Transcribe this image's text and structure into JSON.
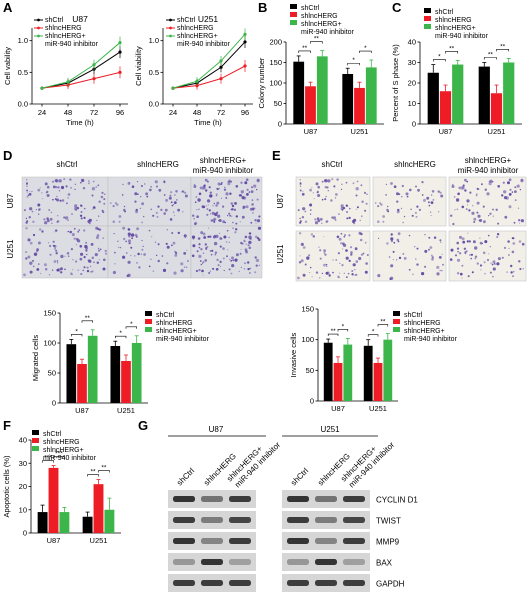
{
  "colors": {
    "shctrl": "#000000",
    "shlnc": "#ee1c25",
    "inhib": "#3cb54a",
    "micro_bg": "#dcdde3",
    "micro_bg_e": "#f2efe9",
    "cell": "#5a3f9e",
    "band": "#222222"
  },
  "panel_letters": {
    "A": "A",
    "B": "B",
    "C": "C",
    "D": "D",
    "E": "E",
    "F": "F",
    "G": "G"
  },
  "groups": [
    "shCtrl",
    "shlncHERG",
    "shlncHERG+ miR-940 inhibitor"
  ],
  "cell_lines": [
    "U87",
    "U251"
  ],
  "panel_a": {
    "legend": [
      "shCtrl",
      "shlncHERG",
      "shlncHERG+",
      "miR-940 inhibitor"
    ],
    "chart_data": [
      {
        "type": "line",
        "title": "U87",
        "xlabel": "Time (h)",
        "ylabel": "Cell vability",
        "x": [
          24,
          48,
          72,
          96
        ],
        "ylim": [
          0,
          1.2
        ],
        "yticks": [
          "0.0",
          "0.5",
          "1.0"
        ],
        "series": [
          {
            "name": "shCtrl",
            "values": [
              0.25,
              0.33,
              0.55,
              0.82
            ]
          },
          {
            "name": "shlncHERG",
            "values": [
              0.25,
              0.3,
              0.4,
              0.5
            ]
          },
          {
            "name": "shlncHERG+ miR-940 inhibitor",
            "values": [
              0.25,
              0.35,
              0.62,
              0.97
            ]
          }
        ]
      },
      {
        "type": "line",
        "title": "U251",
        "xlabel": "Time (h)",
        "ylabel": "Cell viability",
        "x": [
          24,
          48,
          72,
          96
        ],
        "ylim": [
          0,
          1.2
        ],
        "yticks": [
          "0.0",
          "0.5",
          "1.0"
        ],
        "series": [
          {
            "name": "shCtrl",
            "values": [
              0.25,
              0.33,
              0.58,
              0.98
            ]
          },
          {
            "name": "shlncHERG",
            "values": [
              0.25,
              0.29,
              0.4,
              0.6
            ]
          },
          {
            "name": "shlncHERG+ miR-940 inhibitor",
            "values": [
              0.25,
              0.36,
              0.68,
              1.1
            ]
          }
        ]
      }
    ]
  },
  "panel_b": {
    "legend": [
      "shCtrl",
      "shlncHERG",
      "shlncHERG+",
      "miR-940 inhibitor"
    ],
    "chart_data": {
      "type": "bar",
      "categories": [
        "U87",
        "U251"
      ],
      "ylabel": "Colony number",
      "ylim": [
        0,
        200
      ],
      "yticks": [
        "0",
        "50",
        "100",
        "150",
        "200"
      ],
      "series": [
        {
          "name": "shCtrl",
          "values": [
            152,
            122
          ],
          "errors": [
            14,
            14
          ]
        },
        {
          "name": "shlncHERG",
          "values": [
            92,
            88
          ],
          "errors": [
            10,
            14
          ]
        },
        {
          "name": "shlncHERG+ miR-940 inhibitor",
          "values": [
            165,
            138
          ],
          "errors": [
            14,
            18
          ]
        }
      ],
      "significance": [
        "**",
        "**",
        "*",
        "*"
      ]
    }
  },
  "panel_c": {
    "legend": [
      "shCtrl",
      "shlncHERG",
      "shlncHERG+",
      "miR-940 inhibitor"
    ],
    "chart_data": {
      "type": "bar",
      "categories": [
        "U87",
        "U251"
      ],
      "ylabel": "Percent of S phase (%)",
      "ylim": [
        0,
        40
      ],
      "yticks": [
        "0",
        "10",
        "20",
        "30",
        "40"
      ],
      "series": [
        {
          "name": "shCtrl",
          "values": [
            25,
            28
          ],
          "errors": [
            4,
            2
          ]
        },
        {
          "name": "shlncHERG",
          "values": [
            16,
            15
          ],
          "errors": [
            3,
            4
          ]
        },
        {
          "name": "shlncHERG+ miR-940 inhibitor",
          "values": [
            29,
            30
          ],
          "errors": [
            2,
            2
          ]
        }
      ],
      "significance": [
        "*",
        "**",
        "**",
        "**"
      ]
    }
  },
  "panel_d": {
    "headers": [
      "shCtrl",
      "shlncHERG",
      "shlncHERG+",
      "miR-940 inhibitor"
    ],
    "rows": [
      "U87",
      "U251"
    ],
    "legend": [
      "shCtrl",
      "shlncHERG",
      "shlncHERG+",
      "miR-940 inhibitor"
    ],
    "chart_data": {
      "type": "bar",
      "categories": [
        "U87",
        "U251"
      ],
      "ylabel": "Migrated cells",
      "ylim": [
        0,
        150
      ],
      "yticks": [
        "0",
        "50",
        "100",
        "150"
      ],
      "series": [
        {
          "name": "shCtrl",
          "values": [
            98,
            95
          ],
          "errors": [
            8,
            8
          ]
        },
        {
          "name": "shlncHERG",
          "values": [
            65,
            70
          ],
          "errors": [
            8,
            10
          ]
        },
        {
          "name": "shlncHERG+ miR-940 inhibitor",
          "values": [
            112,
            100
          ],
          "errors": [
            10,
            12
          ]
        }
      ],
      "significance": [
        "*",
        "**",
        "*",
        "*"
      ]
    }
  },
  "panel_e": {
    "headers": [
      "shCtrl",
      "shlncHERG",
      "shlncHERG+",
      "miR-940 inhibitor"
    ],
    "rows": [
      "U87",
      "U251"
    ],
    "legend": [
      "shCtrl",
      "shlncHERG",
      "shlncHERG+",
      "miR-940 inhibitor"
    ],
    "chart_data": {
      "type": "bar",
      "categories": [
        "U87",
        "U251"
      ],
      "ylabel": "Invasive cells",
      "ylim": [
        0,
        150
      ],
      "yticks": [
        "0",
        "50",
        "100",
        "150"
      ],
      "series": [
        {
          "name": "shCtrl",
          "values": [
            95,
            90
          ],
          "errors": [
            6,
            10
          ]
        },
        {
          "name": "shlncHERG",
          "values": [
            62,
            62
          ],
          "errors": [
            10,
            8
          ]
        },
        {
          "name": "shlncHERG+ miR-940 inhibitor",
          "values": [
            92,
            100
          ],
          "errors": [
            10,
            10
          ]
        }
      ],
      "significance": [
        "**",
        "*",
        "*",
        "**"
      ]
    }
  },
  "panel_f": {
    "legend": [
      "shCtrl",
      "shlncHERG",
      "shlncHERG+",
      "miR-940 inhibitor"
    ],
    "chart_data": {
      "type": "bar",
      "categories": [
        "U87",
        "U251"
      ],
      "ylabel": "Apoptotic cells (%)",
      "ylim": [
        0,
        40
      ],
      "yticks": [
        "0",
        "10",
        "20",
        "30",
        "40"
      ],
      "series": [
        {
          "name": "shCtrl",
          "values": [
            9,
            7
          ],
          "errors": [
            3,
            2
          ]
        },
        {
          "name": "shlncHERG",
          "values": [
            28,
            21
          ],
          "errors": [
            1,
            2
          ]
        },
        {
          "name": "shlncHERG+ miR-940 inhibitor",
          "values": [
            9,
            10
          ],
          "errors": [
            2,
            5
          ]
        }
      ],
      "significance": [
        "***",
        "***",
        "**",
        "**"
      ]
    }
  },
  "panel_g": {
    "cell_lines": [
      "U87",
      "U251"
    ],
    "lanes": [
      "shCtrl",
      "shlncHERG",
      "shlncHERG+",
      "miR-940 inhibitor"
    ],
    "proteins": [
      "CYCLIN D1",
      "TWIST",
      "MMP9",
      "BAX",
      "GAPDH"
    ]
  }
}
